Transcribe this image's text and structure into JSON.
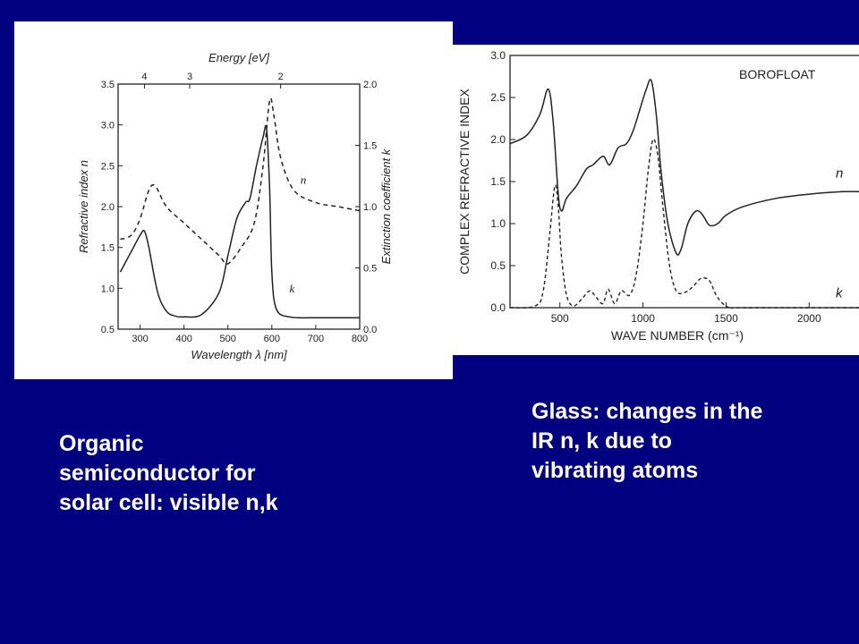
{
  "left_panel": {
    "caption": "Organic\nsemiconductor for\nsolar cell: visible n,k"
  },
  "right_panel": {
    "caption": "Glass: changes in the\nIR n, k due to\nvibrating atoms"
  },
  "chart_data": [
    {
      "type": "line",
      "xlabel_bottom": "Wavelength λ [nm]",
      "xlabel_top": "Energy [eV]",
      "ylabel_left": "Refractive index n",
      "ylabel_right": "Extinction coefficient k",
      "xlim": [
        250,
        800
      ],
      "ylim_left": [
        0.5,
        3.5
      ],
      "ylim_right": [
        0.0,
        2.0
      ],
      "x_ticks": [
        "300",
        "400",
        "500",
        "600",
        "700",
        "800"
      ],
      "x_tick_values": [
        300,
        400,
        500,
        600,
        700,
        800
      ],
      "top_ticks": [
        "4",
        "3",
        "2"
      ],
      "top_tick_values_nm": [
        310,
        413,
        620
      ],
      "y_left_ticks": [
        "0.5",
        "1.0",
        "1.5",
        "2.0",
        "2.5",
        "3.0",
        "3.5"
      ],
      "y_left_tick_values": [
        0.5,
        1.0,
        1.5,
        2.0,
        2.5,
        3.0,
        3.5
      ],
      "y_right_ticks": [
        "0.0",
        "0.5",
        "1.0",
        "1.5",
        "2.0"
      ],
      "y_right_tick_values": [
        0.0,
        0.5,
        1.0,
        1.5,
        2.0
      ],
      "grid": false,
      "series": [
        {
          "name": "n",
          "style": "dashed",
          "axis": "left",
          "x": [
            255,
            280,
            300,
            320,
            335,
            360,
            400,
            440,
            480,
            500,
            530,
            560,
            580,
            595,
            605,
            620,
            650,
            700,
            750,
            800
          ],
          "y": [
            1.6,
            1.65,
            1.85,
            2.2,
            2.25,
            2.0,
            1.8,
            1.6,
            1.4,
            1.3,
            1.5,
            1.8,
            2.5,
            3.3,
            3.1,
            2.6,
            2.2,
            2.05,
            2.0,
            1.95
          ]
        },
        {
          "name": "k",
          "style": "solid",
          "axis": "left",
          "x": [
            255,
            280,
            300,
            310,
            320,
            340,
            360,
            380,
            400,
            440,
            480,
            500,
            520,
            540,
            550,
            565,
            580,
            588,
            595,
            600,
            610,
            640,
            700,
            750,
            800
          ],
          "y": [
            1.2,
            1.45,
            1.65,
            1.7,
            1.5,
            0.95,
            0.72,
            0.66,
            0.65,
            0.68,
            0.95,
            1.4,
            1.85,
            2.05,
            2.1,
            2.5,
            2.85,
            2.95,
            2.2,
            1.2,
            0.75,
            0.65,
            0.64,
            0.64,
            0.64
          ]
        }
      ],
      "annotations": [
        "n",
        "k"
      ]
    },
    {
      "type": "line",
      "title": "BOROFLOAT",
      "xlabel": "WAVE NUMBER (cm⁻¹)",
      "ylabel": "COMPLEX REFRACTIVE INDEX",
      "xlim": [
        200,
        2300
      ],
      "ylim": [
        0.0,
        3.0
      ],
      "x_ticks": [
        "500",
        "1000",
        "1500",
        "2000"
      ],
      "x_tick_values": [
        500,
        1000,
        1500,
        2000
      ],
      "y_ticks": [
        "0.0",
        "0.5",
        "1.0",
        "1.5",
        "2.0",
        "2.5",
        "3.0"
      ],
      "y_tick_values": [
        0.0,
        0.5,
        1.0,
        1.5,
        2.0,
        2.5,
        3.0
      ],
      "grid": false,
      "series": [
        {
          "name": "n",
          "style": "solid",
          "x": [
            200,
            300,
            380,
            430,
            460,
            490,
            510,
            540,
            600,
            660,
            700,
            760,
            800,
            850,
            900,
            940,
            980,
            1020,
            1050,
            1080,
            1110,
            1150,
            1200,
            1230,
            1270,
            1320,
            1360,
            1400,
            1450,
            1500,
            1600,
            1800,
            2000,
            2200,
            2300
          ],
          "y": [
            1.95,
            2.05,
            2.3,
            2.6,
            2.2,
            1.35,
            1.15,
            1.3,
            1.45,
            1.65,
            1.7,
            1.8,
            1.7,
            1.9,
            1.95,
            2.1,
            2.35,
            2.6,
            2.7,
            2.3,
            1.6,
            1.0,
            0.65,
            0.7,
            1.0,
            1.15,
            1.1,
            0.98,
            1.0,
            1.1,
            1.2,
            1.3,
            1.35,
            1.38,
            1.38
          ]
        },
        {
          "name": "k",
          "style": "dashed",
          "x": [
            200,
            350,
            400,
            440,
            470,
            490,
            510,
            540,
            580,
            630,
            680,
            720,
            760,
            790,
            830,
            870,
            920,
            960,
            1000,
            1030,
            1060,
            1090,
            1120,
            1160,
            1200,
            1250,
            1300,
            1350,
            1400,
            1440,
            1480,
            1520,
            1600,
            2300
          ],
          "y": [
            0.0,
            0.02,
            0.2,
            0.9,
            1.45,
            1.2,
            0.6,
            0.15,
            0.02,
            0.1,
            0.2,
            0.12,
            0.05,
            0.22,
            0.05,
            0.2,
            0.15,
            0.4,
            1.0,
            1.6,
            2.0,
            1.8,
            1.2,
            0.5,
            0.2,
            0.18,
            0.25,
            0.35,
            0.32,
            0.15,
            0.05,
            0.0,
            0.0,
            0.0
          ]
        }
      ],
      "annotations": [
        "n",
        "k"
      ]
    }
  ]
}
